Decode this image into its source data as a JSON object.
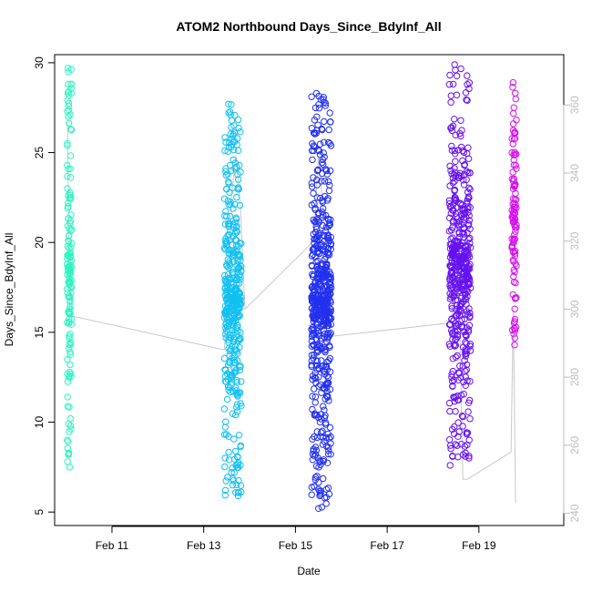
{
  "chart_data": {
    "type": "scatter",
    "title": "ATOM2 Northbound Days_Since_BdyInf_All",
    "xlabel": "Date",
    "ylabel": "Days_Since_BdyInf_All",
    "x_ticks": [
      "Feb 11",
      "Feb 13",
      "Feb 15",
      "Feb 17",
      "Feb 19"
    ],
    "x_tick_values": [
      11,
      13,
      15,
      17,
      19
    ],
    "xlim": [
      9.75,
      20.85
    ],
    "ylim": [
      4.25,
      30.45
    ],
    "y_ticks": [
      5,
      10,
      15,
      20,
      25,
      30
    ],
    "y2_ticks": [
      240,
      260,
      280,
      300,
      320,
      340,
      360
    ],
    "y2lim": [
      236.4,
      374.8
    ],
    "grid": false,
    "legend": "none",
    "series": [
      {
        "color": "#2bf5c2",
        "x_range": [
          10.02,
          10.12
        ],
        "y_min": 7.5,
        "y_max": 29.7,
        "points": 150,
        "seed": 11,
        "values_sample": [
          29.7,
          29.5,
          28.4,
          27.9,
          27.1,
          26.3,
          25.4,
          24.1,
          23.0,
          22.0,
          21.2,
          20.1,
          19.3,
          18.6,
          17.0,
          16.3,
          15.5,
          14.8,
          13.9,
          12.5,
          11.4,
          10.2,
          9.8,
          9.0,
          8.2,
          7.8,
          7.5
        ]
      },
      {
        "color": "#12c0f2",
        "x_range": [
          13.45,
          13.82
        ],
        "y_min": 5.9,
        "y_max": 27.7,
        "points": 420,
        "seed": 23,
        "values_sample": [
          27.7,
          27.1,
          26.5,
          25.6,
          24.2,
          23.5,
          22.1,
          21.3,
          20.4,
          19.2,
          18.6,
          17.5,
          16.2,
          15.4,
          14.1,
          13.2,
          12.0,
          10.4,
          9.2,
          8.0,
          7.2,
          6.5,
          5.9
        ]
      },
      {
        "color": "#2230ee",
        "x_range": [
          15.35,
          15.78
        ],
        "y_min": 5.2,
        "y_max": 28.3,
        "points": 560,
        "seed": 37,
        "values_sample": [
          28.3,
          27.8,
          26.1,
          25.5,
          24.6,
          23.2,
          22.5,
          21.4,
          20.1,
          19.5,
          18.2,
          17.4,
          16.3,
          15.1,
          14.2,
          13.1,
          12.0,
          11.2,
          10.0,
          9.2,
          8.4,
          7.5,
          6.8,
          6.0,
          5.2
        ]
      },
      {
        "color": "#6512ee",
        "x_range": [
          18.35,
          18.82
        ],
        "y_min": 7.6,
        "y_max": 29.9,
        "points": 480,
        "seed": 53,
        "values_sample": [
          29.9,
          27.8,
          26.4,
          25.1,
          24.3,
          23.4,
          22.1,
          21.2,
          20.5,
          19.8,
          18.4,
          17.6,
          16.8,
          15.9,
          15.1,
          14.3,
          13.2,
          12.5,
          11.4,
          10.3,
          9.6,
          8.7,
          8.0,
          7.6
        ]
      },
      {
        "color": "#d611ec",
        "x_range": [
          19.72,
          19.82
        ],
        "y_min": 14.3,
        "y_max": 28.9,
        "points": 110,
        "seed": 71,
        "values_sample": [
          28.9,
          28.3,
          27.5,
          26.6,
          25.8,
          24.9,
          24.1,
          23.2,
          22.4,
          21.3,
          20.2,
          19.5,
          18.7,
          17.8,
          17.1,
          16.3,
          15.6,
          14.9,
          14.3
        ]
      }
    ],
    "secondary_line": {
      "color": "#c8c8c8",
      "axis": "y2",
      "points": [
        [
          10.03,
          355
        ],
        [
          10.05,
          330
        ],
        [
          10.08,
          300
        ],
        [
          10.1,
          315
        ],
        [
          10.12,
          298
        ],
        [
          13.45,
          288
        ],
        [
          13.55,
          310
        ],
        [
          13.62,
          335
        ],
        [
          13.7,
          345
        ],
        [
          13.8,
          330
        ],
        [
          13.9,
          300
        ],
        [
          15.4,
          320
        ],
        [
          15.5,
          345
        ],
        [
          15.6,
          330
        ],
        [
          15.7,
          300
        ],
        [
          15.78,
          292
        ],
        [
          18.4,
          296
        ],
        [
          18.5,
          320
        ],
        [
          18.58,
          300
        ],
        [
          18.62,
          270
        ],
        [
          18.65,
          250
        ],
        [
          18.75,
          250
        ],
        [
          19.7,
          258
        ],
        [
          19.75,
          300
        ],
        [
          19.8,
          243
        ]
      ]
    }
  }
}
